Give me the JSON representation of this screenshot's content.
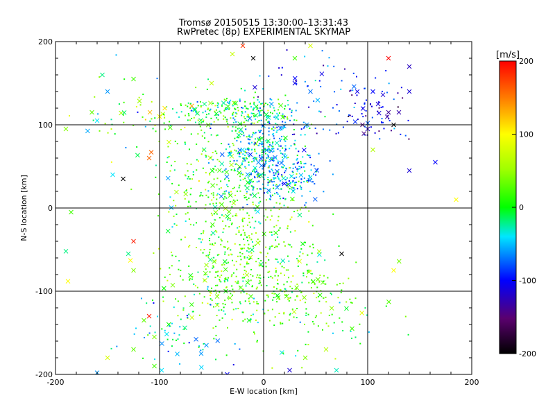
{
  "chart_data": {
    "type": "scatter",
    "title": "Tromsø 20150515 13:30:00–13:31:43",
    "subtitle": "RwPretec (8p) EXPERIMENTAL SKYMAP",
    "xlabel": "E-W location [km]",
    "ylabel": "N-S location [km]",
    "xlim": [
      -200,
      200
    ],
    "ylim": [
      -200,
      200
    ],
    "xticks": [
      "-200",
      "-100",
      "0",
      "100",
      "200"
    ],
    "yticks": [
      "-200",
      "-100",
      "0",
      "100",
      "200"
    ],
    "grid": true,
    "colorbar": {
      "label": "[m/s]",
      "range": [
        -200,
        200
      ],
      "ticks": [
        "200",
        "100",
        "0",
        "-100",
        "-200"
      ],
      "colormap": "black-purple-blue-cyan-green-yellow-red"
    },
    "clusters": [
      {
        "x": -30,
        "y": 115,
        "sx": 30,
        "sy": 10,
        "n": 200,
        "v": 0,
        "sv": 40
      },
      {
        "x": 0,
        "y": 70,
        "sx": 20,
        "sy": 30,
        "n": 320,
        "v": -45,
        "sv": 30
      },
      {
        "x": 20,
        "y": 40,
        "sx": 18,
        "sy": 15,
        "n": 150,
        "v": -60,
        "sv": 25
      },
      {
        "x": -40,
        "y": 40,
        "sx": 35,
        "sy": 40,
        "n": 230,
        "v": 15,
        "sv": 35
      },
      {
        "x": -20,
        "y": -30,
        "sx": 35,
        "sy": 50,
        "n": 340,
        "v": 25,
        "sv": 30
      },
      {
        "x": -5,
        "y": -90,
        "sx": 45,
        "sy": 30,
        "n": 320,
        "v": 25,
        "sv": 30
      },
      {
        "x": 70,
        "y": 130,
        "sx": 40,
        "sy": 25,
        "n": 90,
        "v": -90,
        "sv": 35
      },
      {
        "x": -120,
        "y": 120,
        "sx": 30,
        "sy": 30,
        "n": 60,
        "v": 20,
        "sv": 50
      },
      {
        "x": -80,
        "y": -150,
        "sx": 30,
        "sy": 25,
        "n": 60,
        "v": -40,
        "sv": 30
      },
      {
        "x": 50,
        "y": -140,
        "sx": 40,
        "sy": 30,
        "n": 60,
        "v": 15,
        "sv": 30
      },
      {
        "x": 110,
        "y": 110,
        "sx": 15,
        "sy": 15,
        "n": 40,
        "v": -120,
        "sv": 30
      }
    ],
    "crosses": [
      [
        -110,
        60,
        160
      ],
      [
        -108,
        67,
        160
      ],
      [
        -125,
        -40,
        190
      ],
      [
        -110,
        -130,
        190
      ],
      [
        -155,
        160,
        -20
      ],
      [
        -150,
        140,
        -60
      ],
      [
        -125,
        155,
        20
      ],
      [
        -165,
        115,
        30
      ],
      [
        -160,
        105,
        -40
      ],
      [
        -190,
        95,
        40
      ],
      [
        -185,
        -5,
        20
      ],
      [
        -190,
        -52,
        -20
      ],
      [
        -188,
        -88,
        100
      ],
      [
        -125,
        -75,
        40
      ],
      [
        -128,
        -63,
        100
      ],
      [
        -125,
        -170,
        30
      ],
      [
        -150,
        -180,
        80
      ],
      [
        -160,
        -198,
        -60
      ],
      [
        -98,
        -195,
        -40
      ],
      [
        75,
        -55,
        -200
      ],
      [
        125,
        -75,
        100
      ],
      [
        185,
        10,
        100
      ],
      [
        140,
        170,
        -130
      ],
      [
        105,
        70,
        60
      ],
      [
        165,
        55,
        -100
      ],
      [
        140,
        45,
        -120
      ],
      [
        85,
        -145,
        20
      ],
      [
        70,
        -195,
        -30
      ],
      [
        25,
        -195,
        -120
      ],
      [
        -35,
        -200,
        -100
      ],
      [
        30,
        180,
        20
      ],
      [
        45,
        195,
        80
      ],
      [
        -10,
        180,
        -200
      ],
      [
        -30,
        185,
        70
      ],
      [
        120,
        180,
        200
      ],
      [
        -20,
        195,
        180
      ],
      [
        -100,
        110,
        100
      ],
      [
        -95,
        120,
        110
      ],
      [
        -50,
        150,
        70
      ],
      [
        125,
        100,
        -200
      ],
      [
        100,
        95,
        -130
      ],
      [
        95,
        100,
        -160
      ],
      [
        120,
        115,
        -150
      ],
      [
        130,
        115,
        -140
      ],
      [
        140,
        140,
        -120
      ],
      [
        90,
        140,
        -110
      ],
      [
        105,
        140,
        -100
      ],
      [
        110,
        125,
        -120
      ],
      [
        -135,
        35,
        -200
      ],
      [
        -145,
        40,
        -40
      ],
      [
        -130,
        -55,
        -20
      ],
      [
        -105,
        -155,
        40
      ],
      [
        -115,
        -135,
        30
      ],
      [
        -60,
        -175,
        -60
      ],
      [
        -55,
        -165,
        -60
      ],
      [
        -105,
        -190,
        20
      ],
      [
        40,
        -180,
        40
      ],
      [
        60,
        -170,
        60
      ],
      [
        30,
        150,
        -110
      ],
      [
        45,
        140,
        -70
      ]
    ]
  }
}
